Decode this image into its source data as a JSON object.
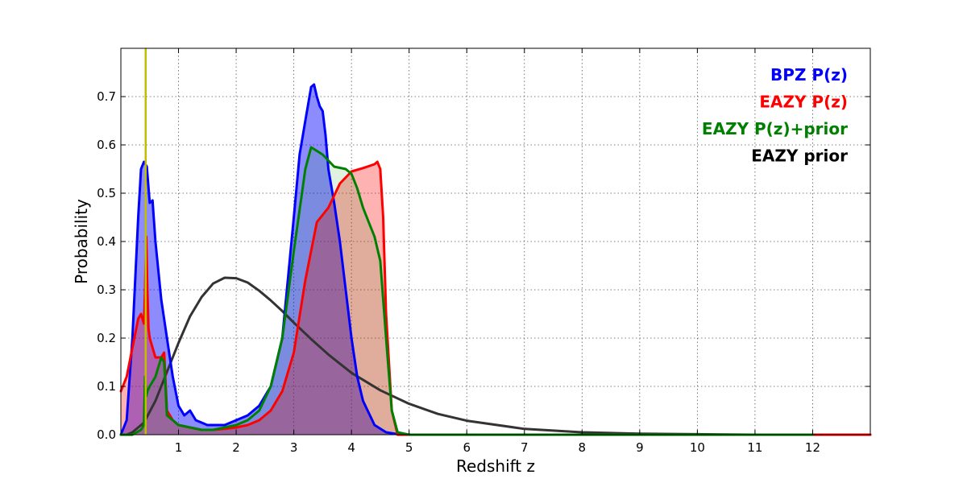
{
  "chart_data": {
    "type": "area",
    "title": "",
    "xlabel": "Redshift z",
    "ylabel": "Probability",
    "xlim": [
      0,
      13
    ],
    "ylim": [
      0,
      0.8
    ],
    "x_ticks": [
      1,
      2,
      3,
      4,
      5,
      6,
      7,
      8,
      9,
      10,
      11,
      12
    ],
    "y_ticks": [
      0.0,
      0.1,
      0.2,
      0.3,
      0.4,
      0.5,
      0.6,
      0.7
    ],
    "grid": true,
    "legend_position": "top-right",
    "vertical_marker": {
      "x": 0.43,
      "color": "#bfbf00"
    },
    "series": [
      {
        "name": "EAZY prior",
        "color": "#333333",
        "fill": false,
        "x": [
          0.1,
          0.2,
          0.4,
          0.6,
          0.8,
          1.0,
          1.2,
          1.4,
          1.6,
          1.8,
          2.0,
          2.2,
          2.4,
          2.6,
          2.8,
          3.0,
          3.3,
          3.6,
          4.0,
          4.5,
          5.0,
          5.5,
          6.0,
          7.0,
          8.0,
          9.0,
          10.0,
          11.0,
          12.0
        ],
        "y": [
          0.0,
          0.005,
          0.025,
          0.07,
          0.13,
          0.19,
          0.245,
          0.285,
          0.313,
          0.325,
          0.324,
          0.315,
          0.298,
          0.278,
          0.256,
          0.232,
          0.198,
          0.166,
          0.128,
          0.092,
          0.064,
          0.043,
          0.029,
          0.012,
          0.005,
          0.002,
          0.001,
          0.0,
          0.0
        ]
      },
      {
        "name": "BPZ P(z)",
        "color": "#0000ff",
        "fill": "rgba(0,0,255,0.45)",
        "x": [
          0.0,
          0.1,
          0.2,
          0.3,
          0.35,
          0.4,
          0.45,
          0.5,
          0.55,
          0.6,
          0.7,
          0.8,
          0.9,
          1.0,
          1.1,
          1.2,
          1.3,
          1.5,
          1.8,
          2.0,
          2.2,
          2.4,
          2.6,
          2.8,
          3.0,
          3.1,
          3.2,
          3.3,
          3.35,
          3.4,
          3.45,
          3.5,
          3.55,
          3.6,
          3.7,
          3.8,
          3.9,
          4.0,
          4.1,
          4.2,
          4.4,
          4.6,
          4.8,
          5.0,
          6.0,
          8.0,
          10.0,
          13.0
        ],
        "y": [
          0.0,
          0.03,
          0.2,
          0.45,
          0.55,
          0.565,
          0.555,
          0.48,
          0.485,
          0.4,
          0.28,
          0.2,
          0.12,
          0.06,
          0.04,
          0.05,
          0.03,
          0.02,
          0.02,
          0.03,
          0.04,
          0.06,
          0.1,
          0.2,
          0.45,
          0.58,
          0.65,
          0.72,
          0.725,
          0.7,
          0.68,
          0.67,
          0.62,
          0.55,
          0.48,
          0.4,
          0.3,
          0.2,
          0.12,
          0.07,
          0.02,
          0.005,
          0.001,
          0.0,
          0.0,
          0.0,
          0.0,
          0.0
        ]
      },
      {
        "name": "EAZY P(z)",
        "color": "#ff0000",
        "fill": "rgba(255,0,0,0.3)",
        "x": [
          0.0,
          0.1,
          0.2,
          0.3,
          0.35,
          0.4,
          0.42,
          0.44,
          0.46,
          0.48,
          0.5,
          0.6,
          0.7,
          0.75,
          0.8,
          0.9,
          1.0,
          1.2,
          1.4,
          1.6,
          1.8,
          2.0,
          2.2,
          2.4,
          2.6,
          2.8,
          3.0,
          3.2,
          3.4,
          3.6,
          3.8,
          4.0,
          4.2,
          4.4,
          4.45,
          4.5,
          4.55,
          4.6,
          4.7,
          4.8,
          5.0,
          6.0,
          8.0,
          10.0,
          13.0
        ],
        "y": [
          0.09,
          0.12,
          0.18,
          0.24,
          0.25,
          0.23,
          0.3,
          0.41,
          0.3,
          0.22,
          0.2,
          0.16,
          0.16,
          0.17,
          0.05,
          0.03,
          0.02,
          0.015,
          0.01,
          0.01,
          0.012,
          0.015,
          0.02,
          0.03,
          0.05,
          0.09,
          0.17,
          0.32,
          0.44,
          0.47,
          0.52,
          0.545,
          0.552,
          0.56,
          0.565,
          0.55,
          0.45,
          0.25,
          0.05,
          0.0,
          0.0,
          0.0,
          0.0,
          0.0,
          0.0
        ]
      },
      {
        "name": "EAZY P(z)+prior",
        "color": "#008000",
        "fill": "rgba(0,140,0,0.12)",
        "x": [
          0.0,
          0.2,
          0.35,
          0.4,
          0.42,
          0.44,
          0.46,
          0.5,
          0.6,
          0.7,
          0.75,
          0.8,
          0.9,
          1.0,
          1.2,
          1.4,
          1.6,
          1.8,
          2.0,
          2.2,
          2.4,
          2.6,
          2.8,
          3.0,
          3.2,
          3.3,
          3.5,
          3.7,
          3.9,
          4.0,
          4.1,
          4.2,
          4.3,
          4.4,
          4.5,
          4.6,
          4.7,
          4.8,
          5.0,
          6.0,
          8.0,
          12.0
        ],
        "y": [
          0.0,
          0.0,
          0.01,
          0.02,
          0.12,
          0.08,
          0.09,
          0.1,
          0.12,
          0.16,
          0.15,
          0.04,
          0.03,
          0.02,
          0.015,
          0.01,
          0.01,
          0.015,
          0.02,
          0.03,
          0.05,
          0.1,
          0.2,
          0.38,
          0.55,
          0.595,
          0.58,
          0.555,
          0.55,
          0.54,
          0.51,
          0.47,
          0.44,
          0.41,
          0.36,
          0.2,
          0.05,
          0.005,
          0.0,
          0.0,
          0.0,
          0.0
        ]
      }
    ],
    "legend_order": [
      "BPZ P(z)",
      "EAZY P(z)",
      "EAZY P(z)+prior",
      "EAZY prior"
    ],
    "legend_colors": [
      "#0000ff",
      "#ff0000",
      "#008000",
      "#000000"
    ]
  }
}
